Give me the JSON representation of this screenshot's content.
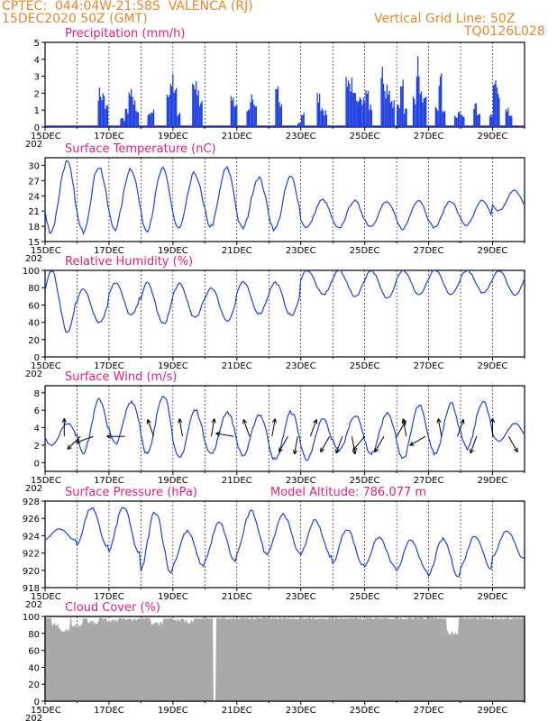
{
  "header": {
    "line1": "CPTEC:  044:04W-21:58S  VALENCA (RJ)",
    "line2": "15DEC2020 50Z (GMT)",
    "right1": "Vertical Grid Line: 50Z",
    "right2": "TQ0126L028"
  },
  "colors": {
    "header": "#e8862a",
    "title": "#e0207a",
    "line": "#1f3fe0",
    "cloud": "#a9a9a9",
    "arrow": "#000000"
  },
  "x_labels": [
    "15DEC",
    "17DEC",
    "19DEC",
    "21DEC",
    "23DEC",
    "25DEC",
    "27DEC",
    "29DEC"
  ],
  "year_stub": "202",
  "chart_data": [
    {
      "id": "precip",
      "type": "bar",
      "title": "Precipitation (mm/h)",
      "ylim": [
        0,
        5
      ],
      "yticks": [
        0,
        1,
        2,
        3,
        4,
        5
      ],
      "x_days": [
        0,
        15
      ],
      "description_values": "hourly bars, days since 15DEC 00Z",
      "values_by_day": [
        {
          "day": 1.65,
          "peaks": [
            2.4,
            2.2,
            1.4
          ]
        },
        {
          "day": 2.35,
          "peaks": [
            0.6,
            0.4
          ]
        },
        {
          "day": 2.5,
          "peaks": [
            1.2,
            2.3,
            1.9,
            1.0
          ]
        },
        {
          "day": 3.2,
          "peaks": [
            0.8,
            1.1
          ]
        },
        {
          "day": 3.8,
          "peaks": [
            2.5,
            3.2,
            2.4,
            1.0
          ]
        },
        {
          "day": 4.6,
          "peaks": [
            3.1,
            2.8,
            1.6
          ]
        },
        {
          "day": 5.8,
          "peaks": [
            2.2,
            1.6
          ]
        },
        {
          "day": 6.3,
          "peaks": [
            1.2,
            2.0,
            1.4
          ]
        },
        {
          "day": 7.2,
          "peaks": [
            2.7,
            1.5
          ]
        },
        {
          "day": 7.9,
          "peaks": [
            0.3,
            0.9
          ]
        },
        {
          "day": 8.5,
          "peaks": [
            2.1,
            1.4,
            1.0
          ]
        },
        {
          "day": 9.4,
          "peaks": [
            3.4,
            3.0,
            2.1,
            1.6
          ]
        },
        {
          "day": 9.8,
          "peaks": [
            2.4,
            2.0,
            2.4,
            1.4
          ]
        },
        {
          "day": 10.5,
          "peaks": [
            3.7,
            2.6,
            2.2,
            1.6
          ]
        },
        {
          "day": 11.0,
          "peaks": [
            1.5,
            3.3,
            1.2
          ]
        },
        {
          "day": 11.5,
          "peaks": [
            2.0,
            4.3,
            2.2,
            1.8
          ]
        },
        {
          "day": 12.2,
          "peaks": [
            1.2,
            3.3,
            1.2
          ]
        },
        {
          "day": 12.8,
          "peaks": [
            0.7,
            1.0,
            0.8
          ]
        },
        {
          "day": 13.4,
          "peaks": [
            1.4,
            0.8
          ]
        },
        {
          "day": 13.9,
          "peaks": [
            0.9,
            3.0,
            2.4
          ]
        },
        {
          "day": 14.4,
          "peaks": [
            1.3,
            0.8
          ]
        }
      ]
    },
    {
      "id": "temp",
      "type": "line",
      "title": "Surface Temperature (nC)",
      "ylim": [
        15,
        31.5
      ],
      "yticks": [
        15,
        18,
        21,
        24,
        27,
        30
      ],
      "daily_max": [
        30.6,
        29.8,
        29.4,
        29.2,
        28.4,
        29.4,
        27.6,
        27.7,
        23.2,
        23.0,
        22.8,
        23.2,
        23.0,
        23.0,
        25.0
      ],
      "daily_min": [
        17.0,
        17.0,
        17.5,
        17.3,
        17.5,
        18.0,
        17.6,
        17.4,
        17.8,
        17.6,
        18.0,
        17.5,
        17.8,
        18.2,
        21.0
      ]
    },
    {
      "id": "rh",
      "type": "line",
      "title": "Relative Humidity (%)",
      "ylim": [
        0,
        100
      ],
      "yticks": [
        0,
        20,
        40,
        60,
        80,
        100
      ],
      "daily_max": [
        100,
        78,
        86,
        85,
        84,
        80,
        86,
        86,
        100,
        100,
        100,
        100,
        100,
        100,
        100
      ],
      "daily_min": [
        28,
        40,
        48,
        38,
        45,
        42,
        50,
        48,
        72,
        70,
        68,
        72,
        72,
        74,
        72
      ]
    },
    {
      "id": "wind",
      "type": "line",
      "title": "Surface Wind (m/s)",
      "ylim": [
        -1,
        8.8
      ],
      "yticks": [
        0,
        2,
        4,
        6,
        8
      ],
      "daily_max": [
        4.5,
        7.2,
        7.0,
        7.8,
        6.0,
        5.8,
        5.5,
        5.8,
        5.0,
        5.4,
        5.6,
        6.5,
        6.8,
        7.0,
        4.5
      ],
      "daily_min": [
        2.0,
        1.2,
        2.2,
        1.0,
        0.5,
        1.0,
        0.8,
        0.3,
        0.4,
        1.4,
        1.0,
        0.5,
        1.0,
        1.6,
        2.5
      ],
      "arrow_days": [
        0.6,
        1.1,
        1.5,
        2.5,
        3.4,
        4.3,
        5.2,
        5.9,
        6.4,
        7.1,
        7.6,
        7.9,
        8.3,
        8.9,
        9.3,
        9.6,
        10.0,
        10.6,
        11.0,
        11.3,
        11.9,
        12.4,
        12.9,
        13.5,
        14.0,
        14.5
      ],
      "arrow_dirs": [
        180,
        315,
        290,
        270,
        200,
        190,
        170,
        260,
        200,
        170,
        330,
        350,
        160,
        330,
        340,
        10,
        320,
        330,
        150,
        190,
        300,
        190,
        160,
        340,
        180,
        30
      ]
    },
    {
      "id": "pressure",
      "type": "line",
      "title": "Surface Pressure (hPa)",
      "extra_label": "Model Altitude: 786.077 m",
      "ylim": [
        918,
        928
      ],
      "yticks": [
        918,
        920,
        922,
        924,
        926,
        928
      ],
      "daily_max": [
        924.8,
        927.2,
        927.3,
        926.8,
        924.5,
        925.5,
        926.8,
        926.5,
        925.8,
        924.8,
        923.8,
        923.5,
        923.6,
        924.0,
        924.6
      ],
      "daily_min": [
        923.5,
        922.8,
        922.0,
        919.6,
        920.5,
        921.0,
        921.8,
        922.2,
        921.6,
        920.6,
        920.4,
        919.8,
        919.2,
        920.2,
        921.5
      ]
    },
    {
      "id": "cloud",
      "type": "area",
      "title": "Cloud Cover (%)",
      "ylim": [
        0,
        100
      ],
      "yticks": [
        0,
        20,
        40,
        60,
        80,
        100
      ],
      "typical": 99,
      "dips": [
        {
          "day": 0.4,
          "value": 88
        },
        {
          "day": 0.6,
          "value": 81
        },
        {
          "day": 1.0,
          "value": 86
        },
        {
          "day": 1.5,
          "value": 90
        },
        {
          "day": 2.1,
          "value": 92
        },
        {
          "day": 2.7,
          "value": 94
        },
        {
          "day": 3.5,
          "value": 88
        },
        {
          "day": 4.1,
          "value": 93
        },
        {
          "day": 4.5,
          "value": 91
        },
        {
          "day": 5.3,
          "value": 0
        },
        {
          "day": 12.75,
          "value": 78
        }
      ]
    }
  ]
}
